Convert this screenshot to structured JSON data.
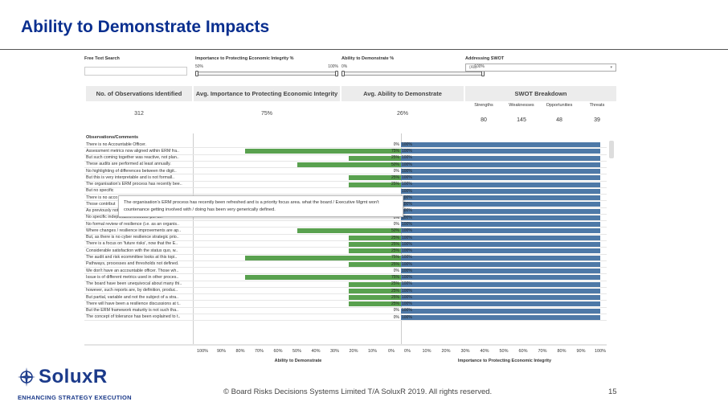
{
  "slide": {
    "title": "Ability to Demonstrate Impacts",
    "copyright": "© Board Risks Decisions Systems Limited T/A SoluxR 2019. All rights reserved.",
    "page_number": "15",
    "logo_text": "SoluxR",
    "tagline": "ENHANCING STRATEGY EXECUTION"
  },
  "filters": {
    "search_label": "Free Text Search",
    "importance_label": "Importance to Protecting Economic Integrity %",
    "importance_min": "50%",
    "importance_max": "100%",
    "importance_range": [
      0.5,
      1.0
    ],
    "ability_label": "Ability to Demonstrate %",
    "ability_min": "0%",
    "ability_max": "100%",
    "ability_range": [
      0,
      1.0
    ],
    "swot_label": "Addressing SWOT",
    "swot_value": "(All)"
  },
  "kpis": {
    "observations_label": "No. of Observations Identified",
    "observations_value": "312",
    "importance_label": "Avg. Importance to Protecting Economic Integrity",
    "importance_value": "75%",
    "ability_label": "Avg. Ability to Demonstrate",
    "ability_value": "26%",
    "swot_label": "SWOT Breakdown",
    "swot": [
      {
        "label": "Strengths",
        "value": "80"
      },
      {
        "label": "Weaknesses",
        "value": "145"
      },
      {
        "label": "Opportunities",
        "value": "48"
      },
      {
        "label": "Threats",
        "value": "39"
      }
    ]
  },
  "observations_header": "Observations/Comments",
  "tooltip": "The organisation's ERM process has recently been refreshed and is a priority focus area.  what the board / Executive Mgmt won't countenance getting involved with / doing  has been very generically defined.",
  "chart_data": {
    "type": "bar",
    "left_axis_title": "Ability to Demonstrate",
    "right_axis_title": "Importance to Protecting Economic Integrity",
    "left_ticks": [
      "100%",
      "90%",
      "80%",
      "70%",
      "60%",
      "50%",
      "40%",
      "30%",
      "20%",
      "10%",
      "0%"
    ],
    "right_ticks": [
      "0%",
      "10%",
      "20%",
      "30%",
      "40%",
      "50%",
      "60%",
      "70%",
      "80%",
      "90%",
      "100%"
    ],
    "colors": {
      "ability": "#59a14f",
      "importance": "#4e79a7"
    },
    "rows": [
      {
        "comment": "There is no Accountable Officer.",
        "ability": 0,
        "ability_label": "0%",
        "importance": 100,
        "importance_label": "100%"
      },
      {
        "comment": "Assessment metrics now aligned within ERM fra..",
        "ability": 75,
        "ability_label": "75%",
        "importance": 100,
        "importance_label": "100%"
      },
      {
        "comment": "But such coming together was reactive, not plan..",
        "ability": 25,
        "ability_label": "25%",
        "importance": 100,
        "importance_label": "100%"
      },
      {
        "comment": "These audits are performed at least annually.",
        "ability": 50,
        "ability_label": "50%",
        "importance": 100,
        "importance_label": "100%"
      },
      {
        "comment": "No highlighting of differences between the digit..",
        "ability": 0,
        "ability_label": "0%",
        "importance": 100,
        "importance_label": "100%"
      },
      {
        "comment": "But this is very interpretable and is not formall..",
        "ability": 25,
        "ability_label": "25%",
        "importance": 100,
        "importance_label": "100%"
      },
      {
        "comment": "The organisation's ERM process has recently bee..",
        "ability": 25,
        "ability_label": "25%",
        "importance": 100,
        "importance_label": "100%"
      },
      {
        "comment": "But no specific",
        "ability": 0,
        "ability_label": "",
        "importance": 100,
        "importance_label": "100%"
      },
      {
        "comment": "There is no acco",
        "ability": 0,
        "ability_label": "",
        "importance": 100,
        "importance_label": "100%"
      },
      {
        "comment": "Those contribut",
        "ability": 0,
        "ability_label": "",
        "importance": 100,
        "importance_label": "100%"
      },
      {
        "comment": "As previously noted there is no external assessm..",
        "ability": 0,
        "ability_label": "0%",
        "importance": 100,
        "importance_label": "100%"
      },
      {
        "comment": "No specific independent reviewer per se.",
        "ability": 0,
        "ability_label": "0%",
        "importance": 100,
        "importance_label": "100%"
      },
      {
        "comment": "No formal review of resilience (i.e. as an organis..",
        "ability": 0,
        "ability_label": "0%",
        "importance": 100,
        "importance_label": "100%"
      },
      {
        "comment": "Where changes / resilience improvements are ap..",
        "ability": 50,
        "ability_label": "50%",
        "importance": 100,
        "importance_label": "100%"
      },
      {
        "comment": "But, as there is no cyber resilience strategic prio..",
        "ability": 25,
        "ability_label": "25%",
        "importance": 100,
        "importance_label": "100%"
      },
      {
        "comment": "There is a focus on 'future risks', now that the E..",
        "ability": 25,
        "ability_label": "25%",
        "importance": 100,
        "importance_label": "100%"
      },
      {
        "comment": "Considerable satisfaction with the status quo, w..",
        "ability": 25,
        "ability_label": "25%",
        "importance": 100,
        "importance_label": "100%"
      },
      {
        "comment": "The audit and risk ecommittee looks at this topi..",
        "ability": 75,
        "ability_label": "75%",
        "importance": 100,
        "importance_label": "100%"
      },
      {
        "comment": "Pathways, processes and thresholds not defined.",
        "ability": 25,
        "ability_label": "25%",
        "importance": 100,
        "importance_label": "100%"
      },
      {
        "comment": "We don't have an accountable officer.  Those wh..",
        "ability": 0,
        "ability_label": "0%",
        "importance": 100,
        "importance_label": "100%"
      },
      {
        "comment": "Issue is of different metrics used in other proces..",
        "ability": 75,
        "ability_label": "75%",
        "importance": 100,
        "importance_label": "100%"
      },
      {
        "comment": "The board have been unequivocal about many thi..",
        "ability": 25,
        "ability_label": "25%",
        "importance": 100,
        "importance_label": "100%"
      },
      {
        "comment": "however, such reports are, by definition, produc..",
        "ability": 25,
        "ability_label": "25%",
        "importance": 100,
        "importance_label": "100%"
      },
      {
        "comment": "But partial, variable and not the subject of a stra..",
        "ability": 25,
        "ability_label": "25%",
        "importance": 100,
        "importance_label": "100%"
      },
      {
        "comment": "There will have been a resilience discussions at t..",
        "ability": 25,
        "ability_label": "25%",
        "importance": 100,
        "importance_label": "100%"
      },
      {
        "comment": "But the ERM framework maturity is not such tha..",
        "ability": 0,
        "ability_label": "0%",
        "importance": 100,
        "importance_label": "100%"
      },
      {
        "comment": "The concept of tolerance has been explained to t..",
        "ability": 0,
        "ability_label": "0%",
        "importance": 100,
        "importance_label": "100%"
      }
    ]
  }
}
